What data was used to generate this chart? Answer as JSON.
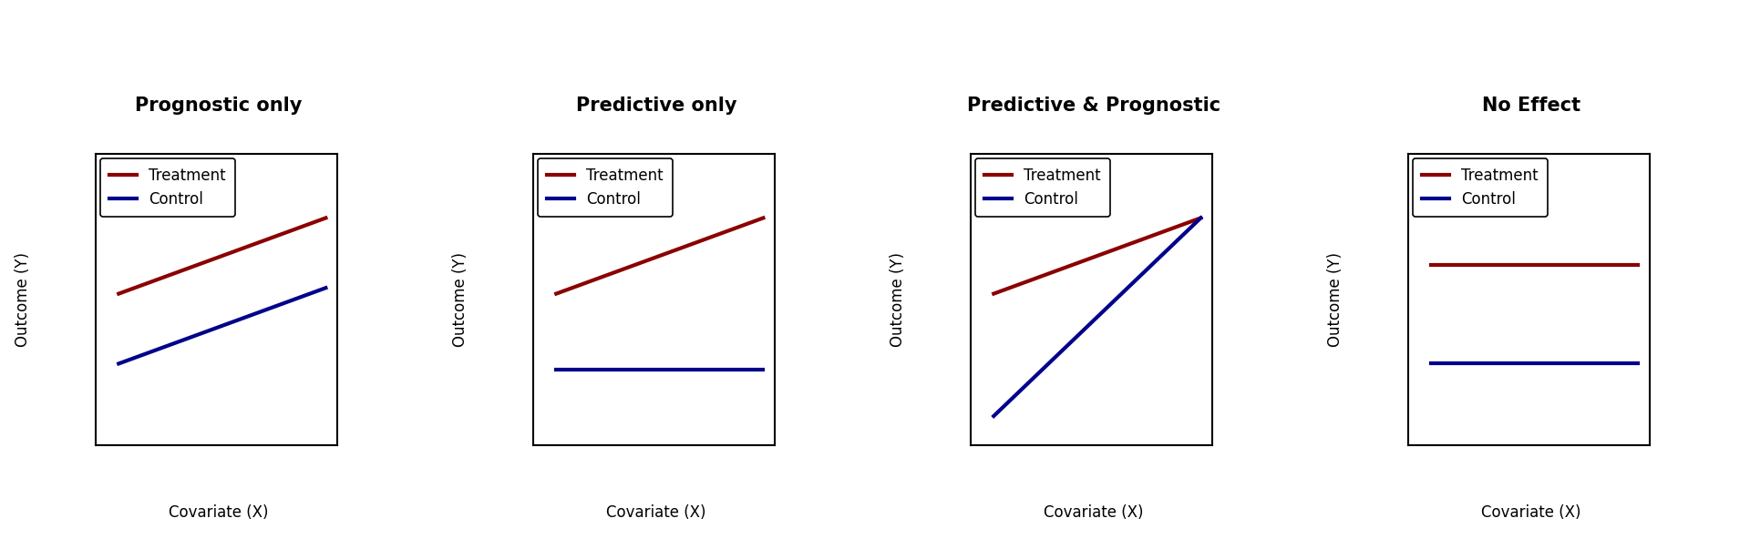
{
  "panels": [
    {
      "title": "Prognostic only",
      "treatment": {
        "x": [
          0.1,
          1.0
        ],
        "y": [
          0.52,
          0.78
        ]
      },
      "control": {
        "x": [
          0.1,
          1.0
        ],
        "y": [
          0.28,
          0.54
        ]
      }
    },
    {
      "title": "Predictive only",
      "treatment": {
        "x": [
          0.1,
          1.0
        ],
        "y": [
          0.52,
          0.78
        ]
      },
      "control": {
        "x": [
          0.1,
          1.0
        ],
        "y": [
          0.26,
          0.26
        ]
      }
    },
    {
      "title": "Predictive & Prognostic",
      "treatment": {
        "x": [
          0.1,
          1.0
        ],
        "y": [
          0.52,
          0.78
        ]
      },
      "control": {
        "x": [
          0.1,
          1.0
        ],
        "y": [
          0.1,
          0.78
        ]
      }
    },
    {
      "title": "No Effect",
      "treatment": {
        "x": [
          0.1,
          1.0
        ],
        "y": [
          0.62,
          0.62
        ]
      },
      "control": {
        "x": [
          0.1,
          1.0
        ],
        "y": [
          0.28,
          0.28
        ]
      }
    }
  ],
  "treatment_color": "#8B0000",
  "control_color": "#00008B",
  "xlabel": "Covariate (X)",
  "ylabel": "Outcome (Y)",
  "line_width": 3.0,
  "background_color": "#ffffff",
  "title_fontsize": 15,
  "label_fontsize": 12,
  "legend_fontsize": 12
}
